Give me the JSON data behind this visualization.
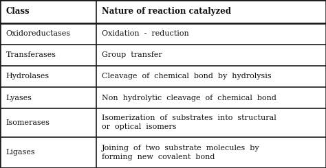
{
  "header": [
    "Class",
    "Nature of reaction catalyzed"
  ],
  "rows": [
    [
      "Oxidoreductases",
      "Oxidation  -  reduction"
    ],
    [
      "Transferases",
      "Group  transfer"
    ],
    [
      "Hydrolases",
      "Cleavage  of  chemical  bond  by  hydrolysis"
    ],
    [
      "Lyases",
      "Non  hydrolytic  cleavage  of  chemical  bond"
    ],
    [
      "Isomerases",
      "Isomerization  of  substrates  into  structural\nor  optical  isomers"
    ],
    [
      "Ligases",
      "Joining  of  two  substrate  molecules  by\nforming  new  covalent  bond"
    ]
  ],
  "col_split": 0.295,
  "bg_color": "#e8e4da",
  "border_color": "#1a1a1a",
  "text_color": "#111111",
  "header_fontsize": 8.5,
  "body_fontsize": 8.0,
  "fig_width": 4.74,
  "fig_height": 2.45,
  "dpi": 100
}
